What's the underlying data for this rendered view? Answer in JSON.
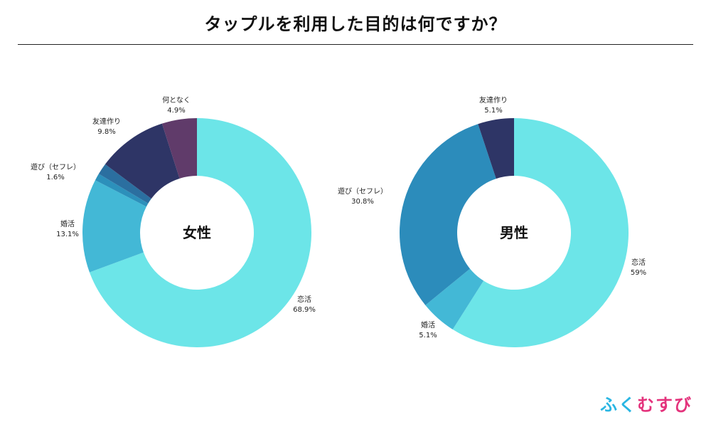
{
  "title": "タップルを利用した目的は何ですか？",
  "logo": {
    "text": "ふくむすび",
    "colors": [
      "#29b6e3",
      "#29b6e3",
      "#e4337c",
      "#e4337c",
      "#e4337c"
    ]
  },
  "chart_data": [
    {
      "type": "pie",
      "variant": "donut",
      "center_label": "女性",
      "slices": [
        {
          "label": "恋活",
          "value": 68.9,
          "display": "68.9%",
          "color": "#6ce5e8"
        },
        {
          "label": "婚活",
          "value": 13.1,
          "display": "13.1%",
          "color": "#43b8d6"
        },
        {
          "label": "",
          "value": 1.0,
          "display": "",
          "color": "#2c90bb"
        },
        {
          "label": "遊び（セフレ）",
          "value": 1.6,
          "display": "1.6%",
          "color": "#2b6fa0"
        },
        {
          "label": "友達作り",
          "value": 9.8,
          "display": "9.8%",
          "color": "#2e3566"
        },
        {
          "label": "何となく",
          "value": 4.9,
          "display": "4.9%",
          "color": "#603b6a"
        }
      ]
    },
    {
      "type": "pie",
      "variant": "donut",
      "center_label": "男性",
      "slices": [
        {
          "label": "恋活",
          "value": 59,
          "display": "59%",
          "color": "#6ce5e8"
        },
        {
          "label": "婚活",
          "value": 5.1,
          "display": "5.1%",
          "color": "#43b8d6"
        },
        {
          "label": "遊び（セフレ）",
          "value": 30.8,
          "display": "30.8%",
          "color": "#2c8cbb"
        },
        {
          "label": "友達作り",
          "value": 5.1,
          "display": "5.1%",
          "color": "#2e3566"
        }
      ]
    }
  ]
}
